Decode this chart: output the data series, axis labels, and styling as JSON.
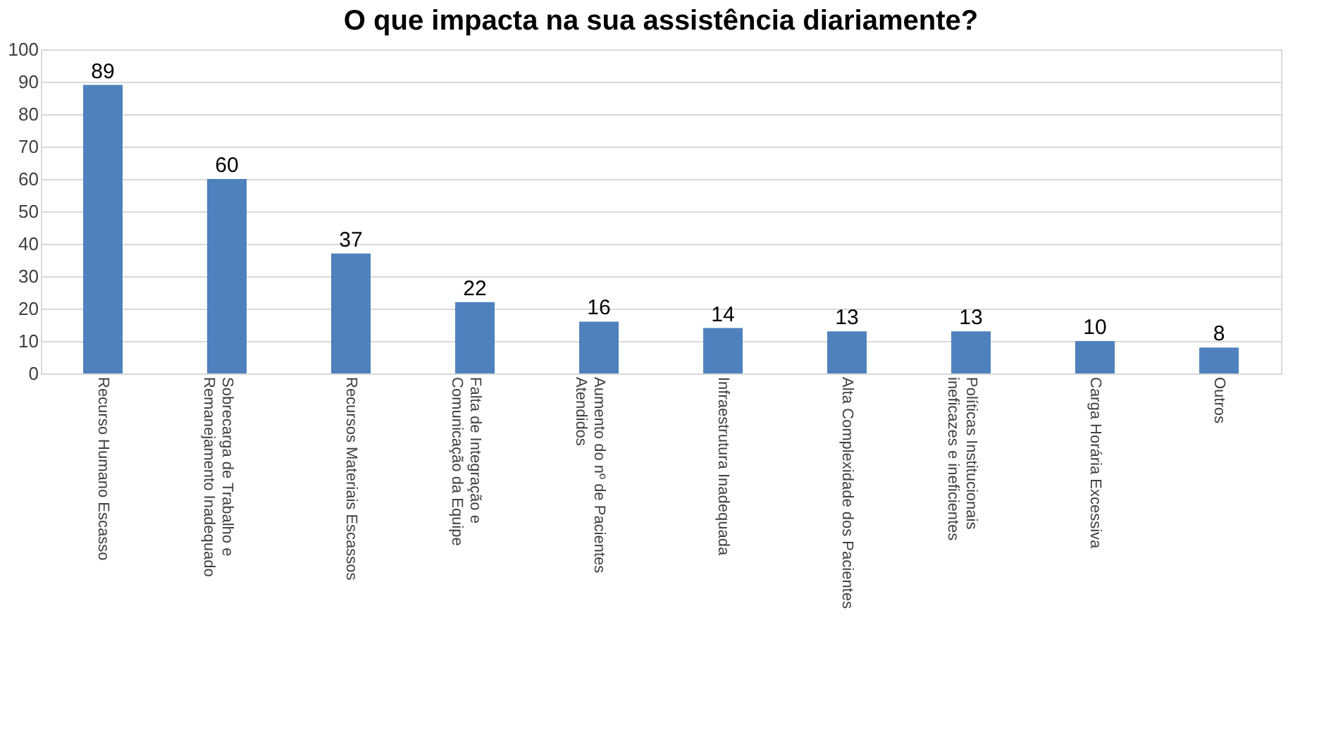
{
  "chart_data": {
    "type": "bar",
    "title": "O que impacta na sua assistência diariamente?",
    "categories": [
      "Recurso Humano Escasso",
      "Sobrecarga de Trabalho e Remanejamento Inadequado",
      "Recursos Materiais Escassos",
      "Falta de Integração e Comunicação da Equipe",
      "Aumento do nº de Pacientes Atendidos",
      "Infraestrutura Inadequada",
      "Alta Complexidade dos Pacientes",
      "Políticas Institucionais ineficazes e ineficientes",
      "Carga Horária Excessiva",
      "Outros"
    ],
    "values": [
      89,
      60,
      37,
      22,
      16,
      14,
      13,
      13,
      10,
      8
    ],
    "color": "#4f81bd",
    "ylim": [
      0,
      100
    ],
    "yticks": [
      0,
      10,
      20,
      30,
      40,
      50,
      60,
      70,
      80,
      90,
      100
    ],
    "grid": "y",
    "data_labels": true
  }
}
